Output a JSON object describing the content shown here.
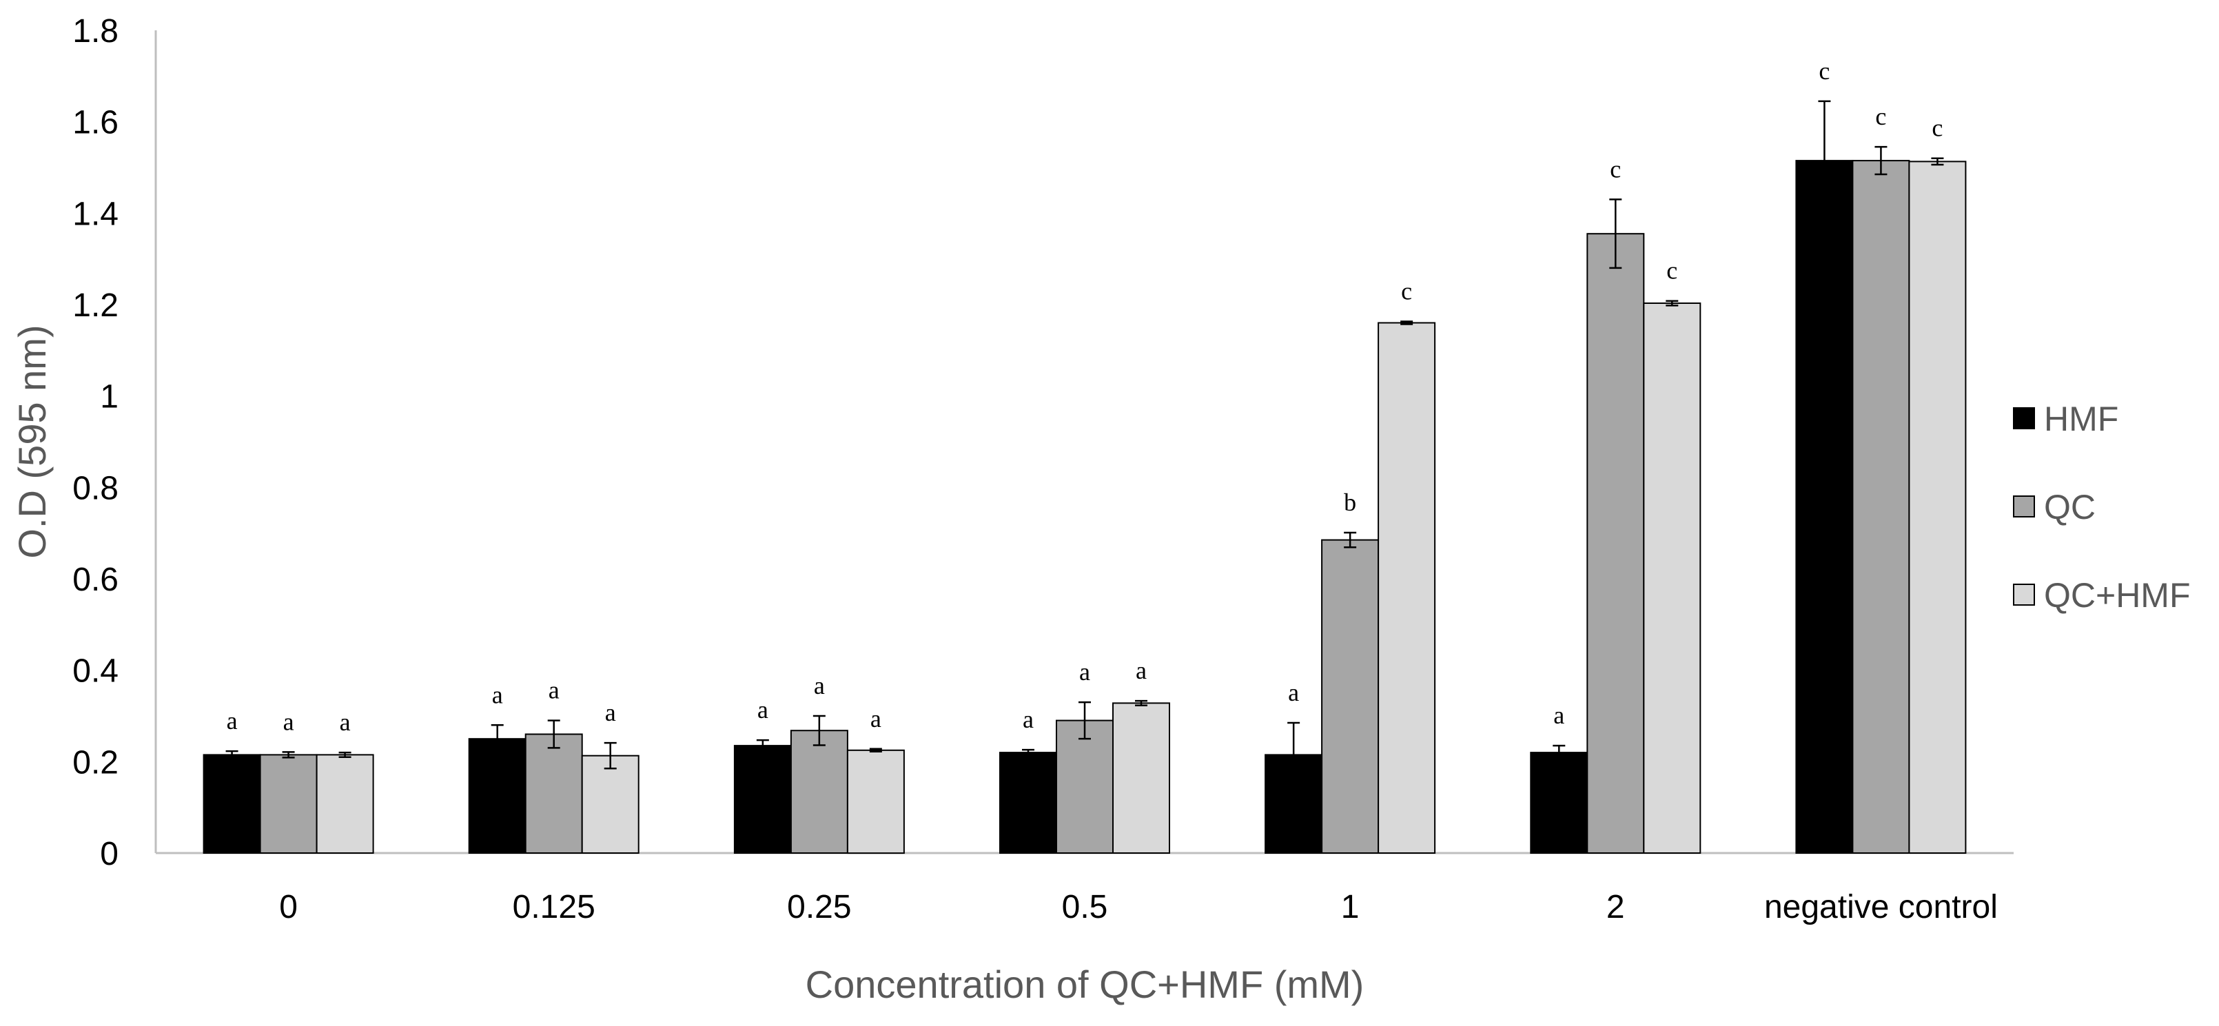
{
  "chart_data": {
    "type": "bar",
    "title": "",
    "xlabel": "Concentration of QC+HMF (mM)",
    "ylabel": "O.D (595 nm)",
    "ylim": [
      0,
      1.8
    ],
    "yticks": [
      "0",
      "0.2",
      "0.4",
      "0.6",
      "0.8",
      "1",
      "1.2",
      "1.4",
      "1.6",
      "1.8"
    ],
    "ytick_values": [
      0,
      0.2,
      0.4,
      0.6,
      0.8,
      1,
      1.2,
      1.4,
      1.6,
      1.8
    ],
    "categories": [
      "0",
      "0.125",
      "0.25",
      "0.5",
      "1",
      "2",
      "negative control"
    ],
    "legend_position": "right",
    "grid": false,
    "series": [
      {
        "name": "HMF",
        "color": "#000000",
        "values": [
          0.215,
          0.25,
          0.235,
          0.22,
          0.215,
          0.22,
          1.515
        ],
        "errors": [
          0.008,
          0.03,
          0.012,
          0.006,
          0.07,
          0.015,
          0.13
        ],
        "letters": [
          "a",
          "a",
          "a",
          "a",
          "a",
          "a",
          "c"
        ]
      },
      {
        "name": "QC",
        "color": "#a6a6a6",
        "values": [
          0.215,
          0.26,
          0.268,
          0.29,
          0.685,
          1.355,
          1.515
        ],
        "errors": [
          0.006,
          0.03,
          0.032,
          0.04,
          0.016,
          0.075,
          0.03
        ],
        "letters": [
          "a",
          "a",
          "a",
          "a",
          "b",
          "c",
          "c"
        ]
      },
      {
        "name": "QC+HMF",
        "color": "#d9d9d9",
        "values": [
          0.215,
          0.213,
          0.225,
          0.328,
          1.16,
          1.203,
          1.513
        ],
        "errors": [
          0.005,
          0.028,
          0.003,
          0.005,
          0.003,
          0.005,
          0.007
        ],
        "letters": [
          "a",
          "a",
          "a",
          "a",
          "c",
          "c",
          "c"
        ]
      }
    ]
  }
}
